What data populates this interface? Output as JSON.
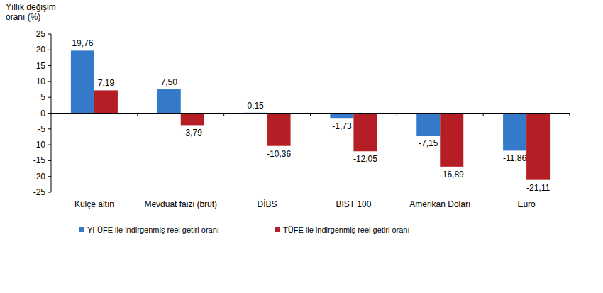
{
  "chart_data": {
    "type": "bar",
    "y_label": [
      "Yıllık değişim",
      "oranı (%)"
    ],
    "categories": [
      "Külçe altın",
      "Mevduat faizi (brüt)",
      "DİBS",
      "BIST 100",
      "Amerikan Doları",
      "Euro"
    ],
    "series": [
      {
        "name": "Yİ-ÜFE ile indirgenmiş reel getiri oranı",
        "color": "#3579c9",
        "values": [
          19.76,
          7.5,
          0.15,
          -1.73,
          -7.15,
          -11.86
        ],
        "value_labels": [
          "19,76",
          "7,50",
          "0,15",
          "-1,73",
          "-7,15",
          "-11,86"
        ]
      },
      {
        "name": "TÜFE ile indirgenmiş reel getiri oranı",
        "color": "#b41e24",
        "values": [
          7.19,
          -3.79,
          -10.36,
          -12.05,
          -16.89,
          -21.11
        ],
        "value_labels": [
          "7,19",
          "-3,79",
          "-10,36",
          "-12,05",
          "-16,89",
          "-21,11"
        ]
      }
    ],
    "ylim": [
      -25,
      25
    ],
    "yticks": [
      -25,
      -20,
      -15,
      -10,
      -5,
      0,
      5,
      10,
      15,
      20,
      25
    ],
    "grid": false,
    "data_labels": true,
    "legend": "bottom"
  }
}
